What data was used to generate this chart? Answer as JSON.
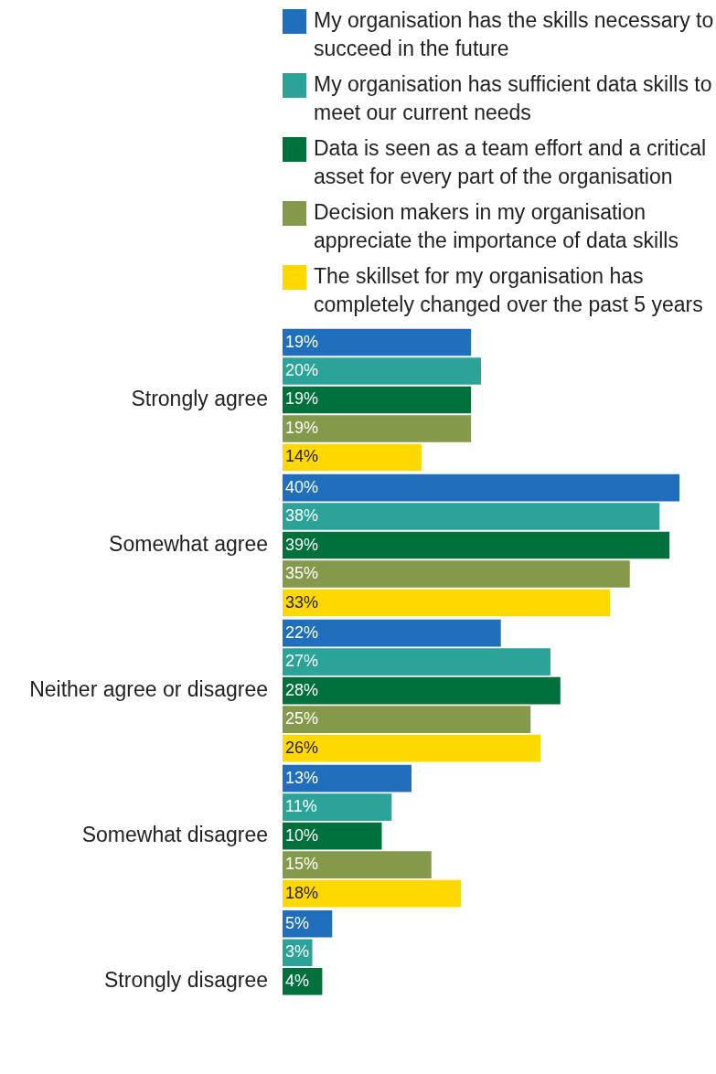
{
  "chart_data": {
    "type": "bar",
    "orientation": "horizontal",
    "legend": "top",
    "tick_labels": "y",
    "data_labels": true,
    "categories": [
      "Strongly agree",
      "Somewhat agree",
      "Neither agree or disagree",
      "Somewhat disagree",
      "Strongly disagree"
    ],
    "series": [
      {
        "name": "My organisation has the skills necessary to succeed in the future",
        "color": "#1f6fbd",
        "values": [
          19,
          40,
          22,
          13,
          5
        ],
        "value_labels": [
          "19%",
          "40%",
          "22%",
          "13%",
          "5%"
        ]
      },
      {
        "name": "My organisation has sufficient data skills to meet our current needs",
        "color": "#2ba398",
        "values": [
          20,
          38,
          27,
          11,
          3
        ],
        "value_labels": [
          "20%",
          "38%",
          "27%",
          "11%",
          "3%"
        ]
      },
      {
        "name": "Data is seen as a team effort and a critical asset for every part of the organisation",
        "color": "#00703c",
        "values": [
          19,
          39,
          28,
          10,
          4
        ],
        "value_labels": [
          "19%",
          "39%",
          "28%",
          "10%",
          "4%"
        ]
      },
      {
        "name": "Decision makers in my organisation appreciate the importance of data skills",
        "color": "#85994b",
        "values": [
          19,
          35,
          25,
          15,
          null
        ],
        "value_labels": [
          "19%",
          "35%",
          "25%",
          "15%",
          null
        ]
      },
      {
        "name": "The skillset for my organisation has completely changed over the past 5 years",
        "color": "#ffd800",
        "values": [
          14,
          33,
          26,
          18,
          null
        ],
        "value_labels": [
          "14%",
          "33%",
          "26%",
          "18%",
          null
        ]
      }
    ]
  }
}
